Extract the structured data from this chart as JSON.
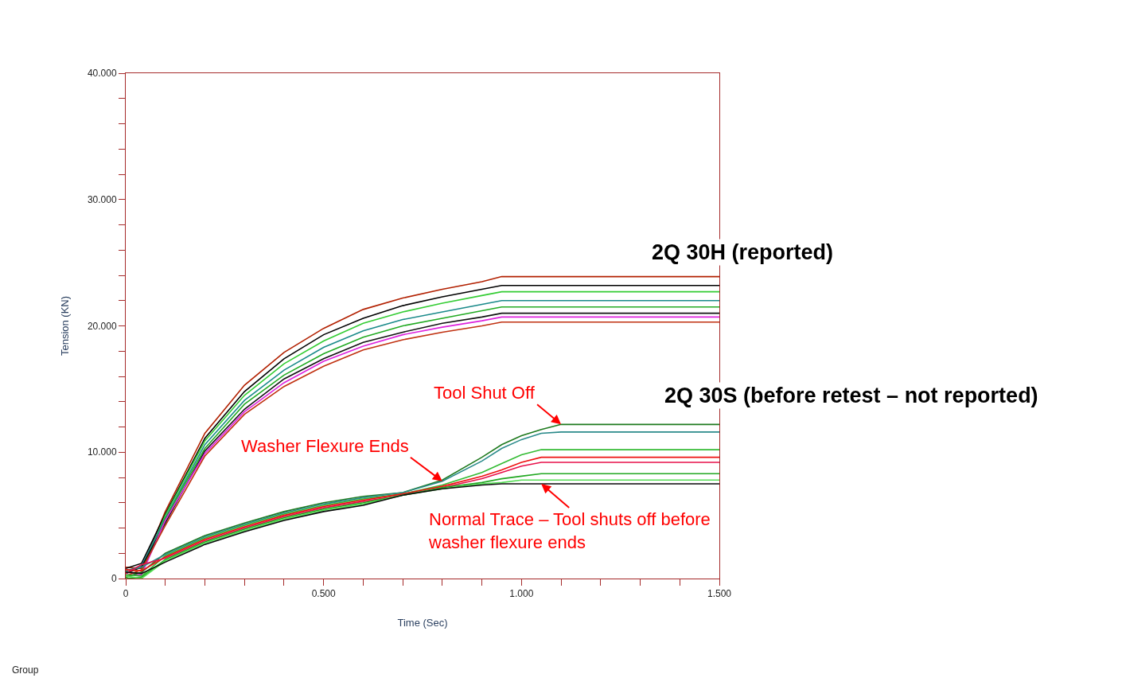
{
  "chart_data": {
    "type": "line",
    "xlabel": "Time (Sec)",
    "ylabel": "Tension (KN)",
    "x": [
      0,
      0.04,
      0.1,
      0.2,
      0.3,
      0.4,
      0.5,
      0.6,
      0.7,
      0.8,
      0.9,
      0.95,
      1.0,
      1.05,
      1.1,
      1.5
    ],
    "xlim": [
      0,
      1.5
    ],
    "ylim": [
      0,
      40
    ],
    "xticks": [
      {
        "value": 0,
        "label": "0"
      },
      {
        "value": 0.1,
        "label": null
      },
      {
        "value": 0.2,
        "label": null
      },
      {
        "value": 0.3,
        "label": null
      },
      {
        "value": 0.4,
        "label": null
      },
      {
        "value": 0.5,
        "label": "0.500"
      },
      {
        "value": 0.6,
        "label": null
      },
      {
        "value": 0.7,
        "label": null
      },
      {
        "value": 0.8,
        "label": null
      },
      {
        "value": 0.9,
        "label": null
      },
      {
        "value": 1.0,
        "label": "1.000"
      },
      {
        "value": 1.1,
        "label": null
      },
      {
        "value": 1.2,
        "label": null
      },
      {
        "value": 1.3,
        "label": null
      },
      {
        "value": 1.4,
        "label": null
      },
      {
        "value": 1.5,
        "label": "1.500"
      }
    ],
    "yticks": [
      {
        "value": 0,
        "label": "0"
      },
      {
        "value": 2,
        "label": null
      },
      {
        "value": 4,
        "label": null
      },
      {
        "value": 6,
        "label": null
      },
      {
        "value": 8,
        "label": null
      },
      {
        "value": 10,
        "label": "10.000"
      },
      {
        "value": 12,
        "label": null
      },
      {
        "value": 14,
        "label": null
      },
      {
        "value": 16,
        "label": null
      },
      {
        "value": 18,
        "label": null
      },
      {
        "value": 20,
        "label": "20.000"
      },
      {
        "value": 22,
        "label": null
      },
      {
        "value": 24,
        "label": null
      },
      {
        "value": 26,
        "label": null
      },
      {
        "value": 28,
        "label": null
      },
      {
        "value": 30,
        "label": "30.000"
      },
      {
        "value": 32,
        "label": null
      },
      {
        "value": 34,
        "label": null
      },
      {
        "value": 36,
        "label": null
      },
      {
        "value": 38,
        "label": null
      },
      {
        "value": 40,
        "label": "40.000"
      }
    ],
    "marker": "none",
    "line_style": "solid",
    "series": [
      {
        "color": "#b22000",
        "values": [
          0.9,
          0.8,
          5.3,
          11.5,
          15.3,
          17.9,
          19.8,
          21.3,
          22.2,
          22.9,
          23.5,
          23.9,
          23.9,
          23.9,
          23.9,
          23.9
        ]
      },
      {
        "color": "#000000",
        "values": [
          0.8,
          1.2,
          5.1,
          11.1,
          14.8,
          17.4,
          19.3,
          20.6,
          21.6,
          22.3,
          22.9,
          23.2,
          23.2,
          23.2,
          23.2,
          23.2
        ]
      },
      {
        "color": "#33cc33",
        "values": [
          0.7,
          0.6,
          5.0,
          10.9,
          14.5,
          17.0,
          18.8,
          20.2,
          21.1,
          21.8,
          22.4,
          22.7,
          22.7,
          22.7,
          22.7,
          22.7
        ]
      },
      {
        "color": "#1a8a8a",
        "values": [
          0.6,
          1.0,
          4.8,
          10.6,
          14.1,
          16.5,
          18.3,
          19.6,
          20.5,
          21.1,
          21.7,
          22.0,
          22.0,
          22.0,
          22.0,
          22.0
        ]
      },
      {
        "color": "#22aa22",
        "values": [
          0.5,
          0.4,
          4.7,
          10.3,
          13.8,
          16.1,
          17.8,
          19.1,
          20.0,
          20.6,
          21.2,
          21.5,
          21.5,
          21.5,
          21.5,
          21.5
        ]
      },
      {
        "color": "#111111",
        "values": [
          0.4,
          0.9,
          4.4,
          10.1,
          13.4,
          15.8,
          17.4,
          18.7,
          19.5,
          20.2,
          20.7,
          21.0,
          21.0,
          21.0,
          21.0,
          21.0
        ]
      },
      {
        "color": "#dd22dd",
        "values": [
          0.3,
          0.3,
          4.6,
          9.9,
          13.2,
          15.5,
          17.2,
          18.4,
          19.3,
          19.9,
          20.4,
          20.7,
          20.7,
          20.7,
          20.7,
          20.7
        ]
      },
      {
        "color": "#c03010",
        "values": [
          0.2,
          0.7,
          4.2,
          9.7,
          13.0,
          15.2,
          16.8,
          18.1,
          18.9,
          19.5,
          20.0,
          20.3,
          20.3,
          20.3,
          20.3,
          20.3
        ]
      },
      {
        "color": "#1e7a1e",
        "values": [
          0.1,
          0.5,
          2.0,
          3.4,
          4.4,
          5.3,
          6.0,
          6.5,
          6.8,
          7.8,
          9.6,
          10.6,
          11.3,
          11.8,
          12.2,
          12.2
        ]
      },
      {
        "color": "#2a8a8a",
        "values": [
          0.6,
          0.9,
          1.9,
          3.3,
          4.3,
          5.2,
          5.9,
          6.4,
          6.8,
          7.7,
          9.3,
          10.3,
          11.0,
          11.5,
          11.6,
          11.6
        ]
      },
      {
        "color": "#33bb33",
        "values": [
          0.3,
          0.2,
          1.8,
          3.2,
          4.2,
          5.1,
          5.8,
          6.3,
          6.7,
          7.4,
          8.4,
          9.1,
          9.8,
          10.2,
          10.2,
          10.2
        ]
      },
      {
        "color": "#ee1111",
        "values": [
          0.7,
          0.6,
          1.7,
          3.1,
          4.1,
          5.0,
          5.7,
          6.2,
          6.7,
          7.3,
          8.1,
          8.6,
          9.2,
          9.6,
          9.6,
          9.6
        ]
      },
      {
        "color": "#e8104a",
        "values": [
          0.4,
          1.1,
          1.6,
          3.0,
          4.0,
          4.9,
          5.6,
          6.1,
          6.6,
          7.2,
          7.9,
          8.4,
          8.9,
          9.2,
          9.2,
          9.2
        ]
      },
      {
        "color": "#22a822",
        "values": [
          0.0,
          0.1,
          1.5,
          2.9,
          3.9,
          4.8,
          5.5,
          6.0,
          6.6,
          7.2,
          7.6,
          7.9,
          8.1,
          8.3,
          8.3,
          8.3
        ]
      },
      {
        "color": "#55dd55",
        "values": [
          0.2,
          0.0,
          1.4,
          2.8,
          3.8,
          4.7,
          5.4,
          5.9,
          6.6,
          7.1,
          7.5,
          7.6,
          7.8,
          7.8,
          7.8,
          7.8
        ]
      },
      {
        "color": "#0a0a0a",
        "values": [
          0.5,
          0.4,
          1.3,
          2.7,
          3.7,
          4.6,
          5.3,
          5.8,
          6.6,
          7.1,
          7.4,
          7.5,
          7.5,
          7.5,
          7.5,
          7.5
        ]
      }
    ],
    "annotations": [
      {
        "text": "Tool Shut Off",
        "x": 1.1,
        "y": 12.2
      },
      {
        "text": "Washer Flexure Ends",
        "x": 0.8,
        "y": 7.7
      },
      {
        "text": "Normal Trace – Tool shuts off before\nwasher flexure ends",
        "x": 1.05,
        "y": 7.5
      },
      "2Q 30H (reported)",
      "2Q 30S (before retest – not reported)",
      "Group"
    ]
  }
}
